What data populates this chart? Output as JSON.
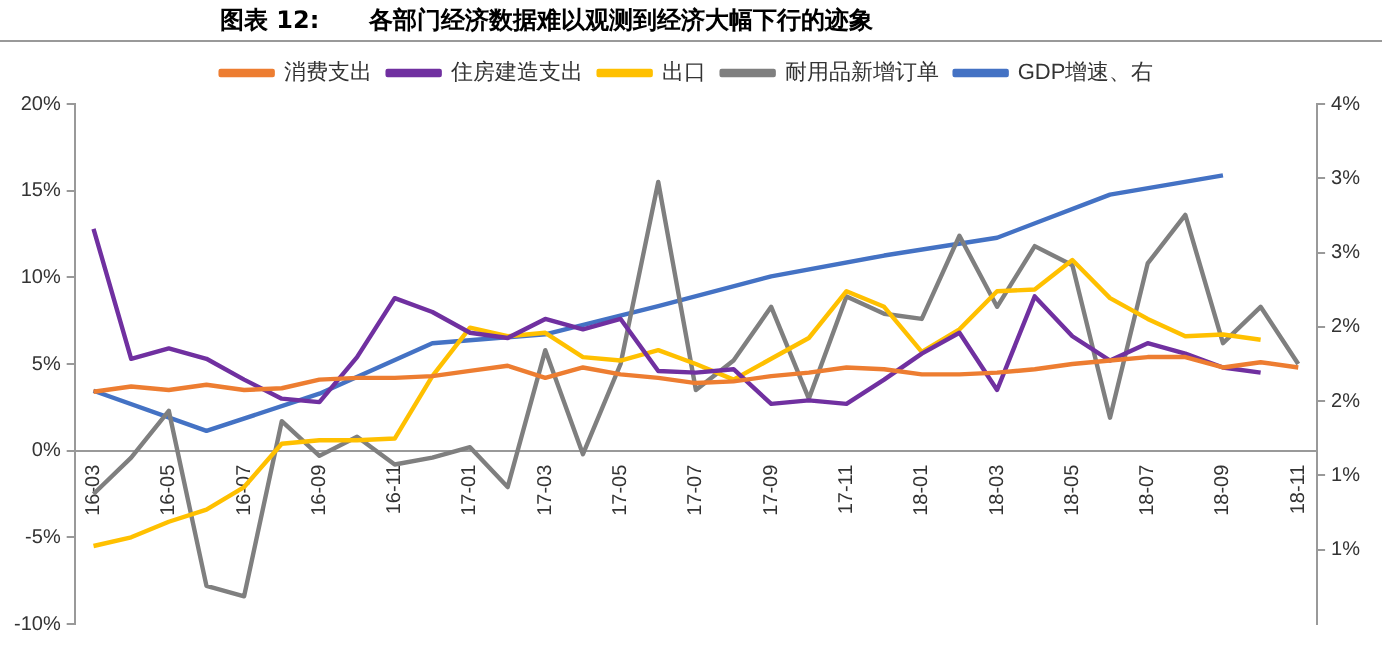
{
  "chart_data": {
    "type": "line",
    "title": "图表 12:      各部门经济数据难以观测到经济大幅下行的迹象",
    "categories": [
      "16-03",
      null,
      "16-05",
      null,
      "16-07",
      null,
      "16-09",
      null,
      "16-11",
      null,
      "17-01",
      null,
      "17-03",
      null,
      "17-05",
      null,
      "17-07",
      null,
      "17-09",
      null,
      "17-11",
      null,
      "18-01",
      null,
      "18-03",
      null,
      "18-05",
      null,
      "18-07",
      null,
      "18-09",
      null,
      "18-11"
    ],
    "series": [
      {
        "name": "消费支出",
        "color": "#ed7d31",
        "values": [
          3.4,
          3.7,
          3.5,
          3.8,
          3.5,
          3.6,
          4.1,
          4.2,
          4.2,
          4.3,
          4.6,
          4.9,
          4.2,
          4.8,
          4.4,
          4.2,
          3.9,
          4.0,
          4.3,
          4.5,
          4.8,
          4.7,
          4.4,
          4.4,
          4.5,
          4.7,
          5.0,
          5.2,
          5.4,
          5.4,
          4.8,
          5.1,
          4.8
        ]
      },
      {
        "name": "住房建造支出",
        "color": "#7030a0",
        "values": [
          12.8,
          5.3,
          5.9,
          5.3,
          4.1,
          3.0,
          2.8,
          5.4,
          8.8,
          8.0,
          6.8,
          6.5,
          7.6,
          7.0,
          7.6,
          4.6,
          4.5,
          4.7,
          2.7,
          2.9,
          2.7,
          4.1,
          5.6,
          6.8,
          3.5,
          8.9,
          6.6,
          5.2,
          6.2,
          5.6,
          4.8,
          4.5,
          null
        ]
      },
      {
        "name": "出口",
        "color": "#ffc000",
        "values": [
          -5.5,
          -5.0,
          -4.1,
          -3.4,
          -2.1,
          0.4,
          0.6,
          0.6,
          0.7,
          4.3,
          7.1,
          6.6,
          6.8,
          5.4,
          5.2,
          5.8,
          5.0,
          4.1,
          5.3,
          6.5,
          9.2,
          8.3,
          5.7,
          7.0,
          9.2,
          9.3,
          11.0,
          8.8,
          7.6,
          6.6,
          6.7,
          6.4,
          null
        ]
      },
      {
        "name": "耐用品新增订单",
        "color": "#7f7f7f",
        "values": [
          -2.5,
          -0.4,
          2.3,
          -7.8,
          -8.4,
          1.7,
          -0.3,
          0.8,
          -0.8,
          -0.4,
          0.2,
          -2.1,
          5.8,
          -0.2,
          5.0,
          15.5,
          3.5,
          5.2,
          8.3,
          3.0,
          8.9,
          7.9,
          7.6,
          12.4,
          8.3,
          11.8,
          10.7,
          1.9,
          10.8,
          13.6,
          6.2,
          8.3,
          5.0
        ]
      },
      {
        "name": "GDP增速、右",
        "color": "#4472c4",
        "axis": "y2",
        "values": [
          2.07,
          null,
          null,
          1.8,
          null,
          null,
          2.05,
          null,
          null,
          2.39,
          null,
          null,
          2.45,
          null,
          null,
          2.64,
          null,
          null,
          2.84,
          null,
          null,
          2.98,
          null,
          null,
          3.1,
          null,
          null,
          3.39,
          null,
          null,
          3.52,
          null,
          null
        ]
      }
    ],
    "ylim": [
      -10,
      20
    ],
    "yticks": [
      {
        "value": -10,
        "label": "-10%"
      },
      {
        "value": -5,
        "label": "-5%"
      },
      {
        "value": 0,
        "label": "0%"
      },
      {
        "value": 5,
        "label": "5%"
      },
      {
        "value": 10,
        "label": "10%"
      },
      {
        "value": 15,
        "label": "15%"
      },
      {
        "value": 20,
        "label": "20%"
      }
    ],
    "y2lim": [
      0.5,
      4
    ],
    "y2ticks": [
      {
        "value": 1,
        "label": "1%"
      },
      {
        "value": 1.5,
        "label": "1%"
      },
      {
        "value": 2,
        "label": "2%"
      },
      {
        "value": 2.5,
        "label": "2%"
      },
      {
        "value": 3,
        "label": "3%"
      },
      {
        "value": 3.5,
        "label": "3%"
      },
      {
        "value": 4,
        "label": "4%"
      }
    ],
    "legend": "top",
    "grid": false,
    "marker": "none",
    "line_style": "solid"
  }
}
